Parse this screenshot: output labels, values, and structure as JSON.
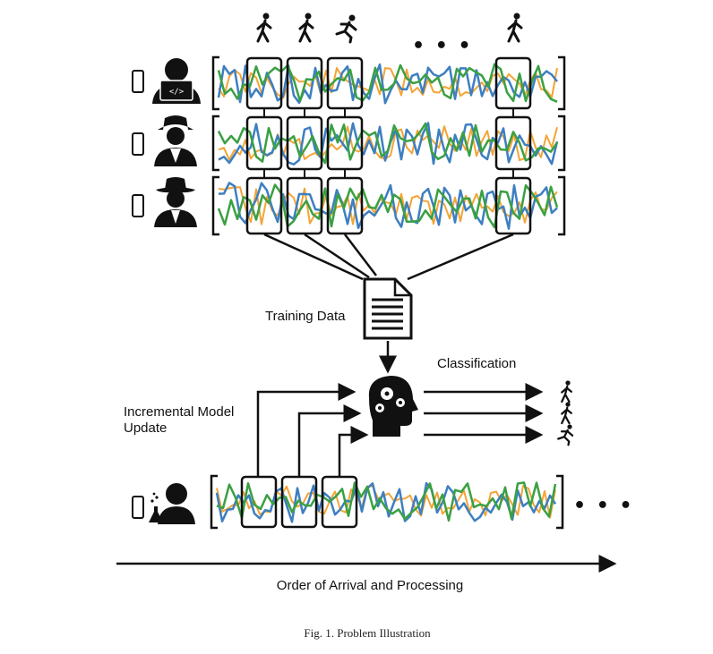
{
  "labels": {
    "training_data": "Training Data",
    "classification": "Classification",
    "incremental_update_line1": "Incremental Model",
    "incremental_update_line2": "Update",
    "order_axis": "Order of Arrival and Processing",
    "caption": "Fig. 1.  Problem Illustration",
    "top_ellipsis": "• • •",
    "bottom_ellipsis": "• • •"
  },
  "users": [
    {
      "role": "developer-user-icon"
    },
    {
      "role": "spy-user-icon"
    },
    {
      "role": "cowboy-user-icon"
    },
    {
      "role": "scientist-user-icon"
    }
  ],
  "activities_top": [
    "walk-icon",
    "walk-icon",
    "run-icon",
    "walk-icon"
  ],
  "activities_output": [
    "walk-icon",
    "walk-icon",
    "run-icon"
  ],
  "colors": {
    "series_orange": "#f4a436",
    "series_blue": "#3d7fc1",
    "series_green": "#3aa043",
    "ink": "#111111"
  }
}
